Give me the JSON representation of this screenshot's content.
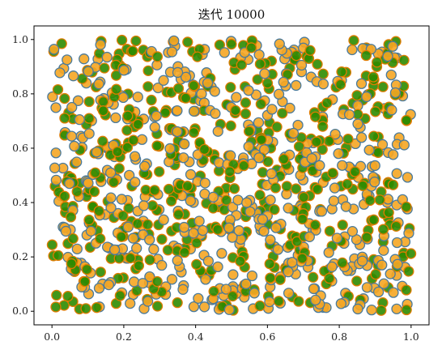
{
  "chart_data": {
    "type": "scatter",
    "title": "迭代 10000",
    "xlabel": "",
    "ylabel": "",
    "xlim": [
      -0.05,
      1.05
    ],
    "ylim": [
      -0.05,
      1.05
    ],
    "xticks": [
      "0.0",
      "0.2",
      "0.4",
      "0.6",
      "0.8",
      "1.0"
    ],
    "yticks": [
      "0.0",
      "0.2",
      "0.4",
      "0.6",
      "0.8",
      "1.0"
    ],
    "grid": false,
    "legend": "none",
    "point_count": 1000,
    "seed": 10000,
    "series": [
      {
        "fill": "#f5a623",
        "edge": "#4a7a9b",
        "share": 0.5
      },
      {
        "fill": "#2e8b00",
        "edge": "#e07b00",
        "share": 0.5
      }
    ]
  }
}
